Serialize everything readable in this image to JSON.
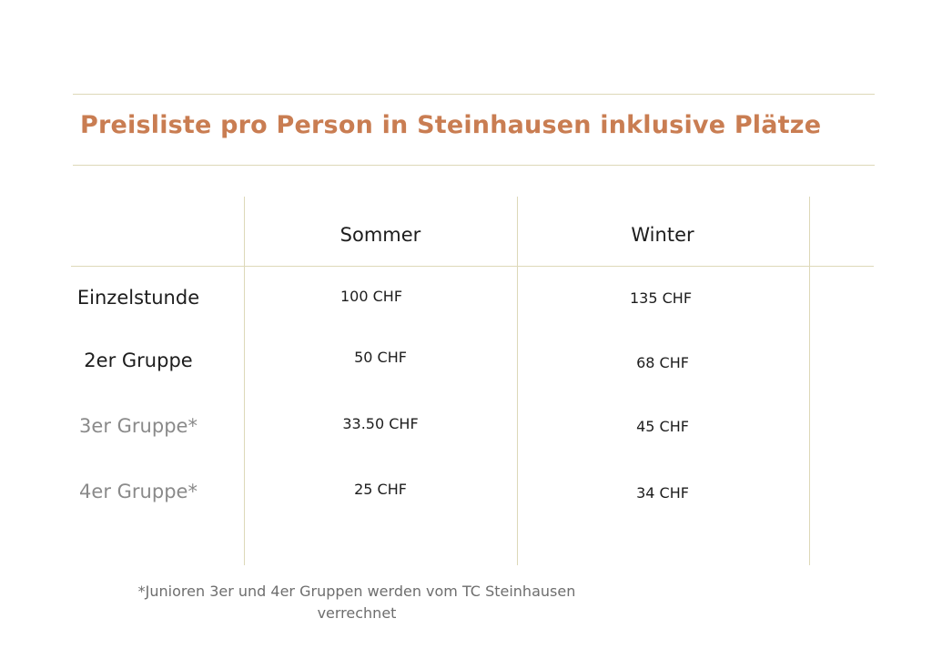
{
  "title": "Preisliste pro Person in Steinhausen inklusive Plätze",
  "accent_color": "#c97d52",
  "line_color": "#ddd8b8",
  "table": {
    "columns": [
      "Sommer",
      "Winter"
    ],
    "rows": [
      {
        "label": "Einzelstunde",
        "sommer": "100 CHF",
        "winter": "135 CHF"
      },
      {
        "label": "2er Gruppe",
        "sommer": "50 CHF",
        "winter": "68 CHF"
      },
      {
        "label": "3er Gruppe*",
        "sommer": "33.50 CHF",
        "winter": "45 CHF"
      },
      {
        "label": "4er Gruppe*",
        "sommer": "25 CHF",
        "winter": "34 CHF"
      }
    ]
  },
  "footnote": "*Junioren 3er und 4er Gruppen werden vom TC Steinhausen verrechnet"
}
